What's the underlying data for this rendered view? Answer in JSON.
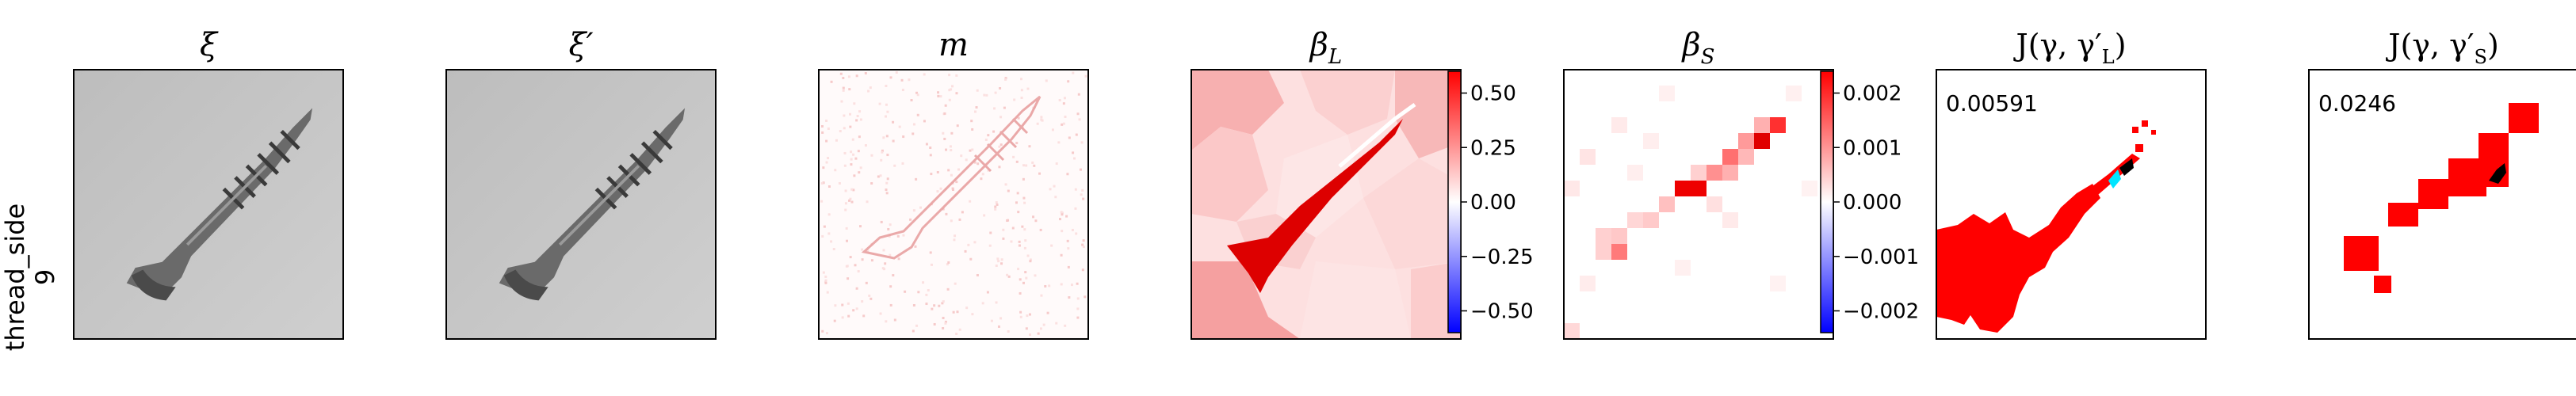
{
  "row_label": {
    "line1": "thread_side",
    "line2": "9"
  },
  "panels": [
    {
      "id": "xi",
      "title": "ξ"
    },
    {
      "id": "xi_prime",
      "title": "ξ′"
    },
    {
      "id": "mask",
      "title": "m"
    },
    {
      "id": "beta_l",
      "title": "β",
      "title_sub": "L"
    },
    {
      "id": "beta_s",
      "title": "β",
      "title_sub": "S"
    },
    {
      "id": "j_l",
      "title": "J(γ, γ′",
      "title_sub": "L",
      "title_end": ")",
      "score": "0.00591"
    },
    {
      "id": "j_s",
      "title": "J(γ, γ′",
      "title_sub": "S",
      "title_end": ")",
      "score": "0.0246"
    }
  ],
  "colorbars": [
    {
      "panel": "beta_l",
      "vmin": -0.6,
      "vmax": 0.6,
      "ticks": [
        0.5,
        0.25,
        0.0,
        -0.25,
        -0.5
      ],
      "tick_labels": [
        "0.50",
        "0.25",
        "0.00",
        "−0.25",
        "−0.50"
      ]
    },
    {
      "panel": "beta_s",
      "vmin": -0.0024,
      "vmax": 0.0024,
      "ticks": [
        0.002,
        0.001,
        0.0,
        -0.001,
        -0.002
      ],
      "tick_labels": [
        "0.002",
        "0.001",
        "0.000",
        "−0.001",
        "−0.002"
      ]
    }
  ],
  "colors": {
    "pos": "#ff0000",
    "neg": "#0000ff",
    "mid": "#ffffff",
    "highlight": "#ff0000",
    "gt_a": "#000000",
    "gt_b": "#00e5ff",
    "photo_bg": "#c8c8c8",
    "screw": "#6a6a6a"
  }
}
